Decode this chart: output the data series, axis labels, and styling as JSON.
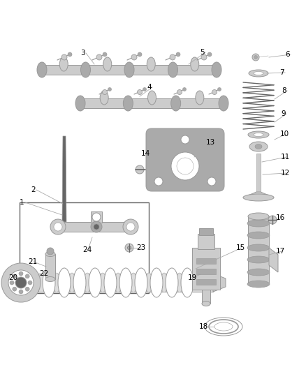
{
  "bg_color": "#ffffff",
  "fig_width": 4.38,
  "fig_height": 5.33,
  "dpi": 100,
  "line_color": "#999999",
  "part_color": "#cccccc",
  "part_color2": "#aaaaaa",
  "dark_color": "#666666",
  "lw": 0.7
}
